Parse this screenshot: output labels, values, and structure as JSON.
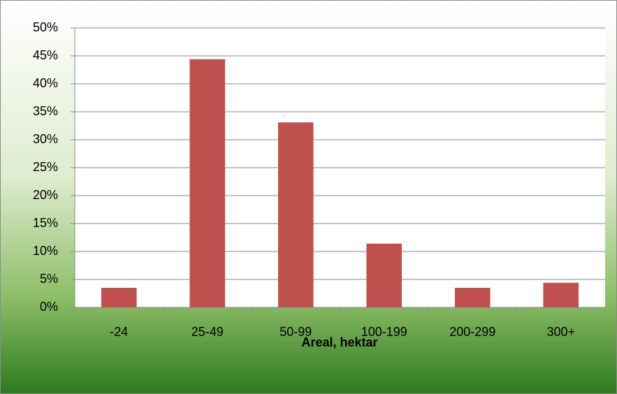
{
  "chart_data": {
    "type": "bar",
    "categories": [
      "-24",
      "25-49",
      "50-99",
      "100-199",
      "200-299",
      "300+"
    ],
    "values": [
      3.5,
      44.4,
      33.1,
      11.4,
      3.5,
      4.4
    ],
    "color": "#c0504d",
    "x_label": "Areal, hektar",
    "ylim": [
      0,
      50
    ],
    "yticks": [
      {
        "value": 0,
        "label": "0%"
      },
      {
        "value": 5,
        "label": "5%"
      },
      {
        "value": 10,
        "label": "10%"
      },
      {
        "value": 15,
        "label": "15%"
      },
      {
        "value": 20,
        "label": "20%"
      },
      {
        "value": 25,
        "label": "25%"
      },
      {
        "value": 30,
        "label": "30%"
      },
      {
        "value": 35,
        "label": "35%"
      },
      {
        "value": 40,
        "label": "40%"
      },
      {
        "value": 45,
        "label": "45%"
      },
      {
        "value": 50,
        "label": "50%"
      }
    ],
    "grid": true
  }
}
